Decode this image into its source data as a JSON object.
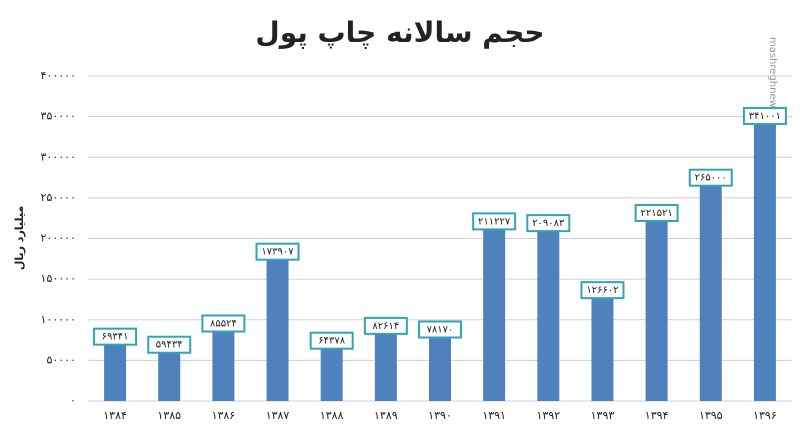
{
  "chart_data": {
    "type": "bar",
    "title": "حجم سالانه چاپ پول",
    "y_label": "میلیارد ریال",
    "watermark": "mashreghnews.ir",
    "categories": [
      "۱۳۸۴",
      "۱۳۸۵",
      "۱۳۸۶",
      "۱۳۸۷",
      "۱۳۸۸",
      "۱۳۸۹",
      "۱۳۹۰",
      "۱۳۹۱",
      "۱۳۹۲",
      "۱۳۹۳",
      "۱۳۹۴",
      "۱۳۹۵",
      "۱۳۹۶"
    ],
    "values": [
      69341,
      59434,
      85524,
      173907,
      64378,
      82614,
      78170,
      211227,
      209083,
      126602,
      221521,
      265000,
      341001
    ],
    "value_labels": [
      "۶۹۳۴۱",
      "۵۹۴۳۴",
      "۸۵۵۲۴",
      "۱۷۳۹۰۷",
      "۶۴۳۷۸",
      "۸۲۶۱۴",
      "۷۸۱۷۰",
      "۲۱۱۲۲۷",
      "۲۰۹۰۸۳",
      "۱۲۶۶۰۲",
      "۲۲۱۵۲۱",
      "۲۶۵۰۰۰",
      "۳۴۱۰۰۱"
    ],
    "color": "#4f81bd",
    "ylim": [
      0,
      400000
    ],
    "yticks": [
      {
        "value": 0,
        "label": "۰"
      },
      {
        "value": 50000,
        "label": "۵۰۰۰۰"
      },
      {
        "value": 100000,
        "label": "۱۰۰۰۰۰"
      },
      {
        "value": 150000,
        "label": "۱۵۰۰۰۰"
      },
      {
        "value": 200000,
        "label": "۲۰۰۰۰۰"
      },
      {
        "value": 250000,
        "label": "۲۵۰۰۰۰"
      },
      {
        "value": 300000,
        "label": "۳۰۰۰۰۰"
      },
      {
        "value": 350000,
        "label": "۳۵۰۰۰۰"
      },
      {
        "value": 400000,
        "label": "۴۰۰۰۰۰"
      }
    ],
    "grid": true
  }
}
